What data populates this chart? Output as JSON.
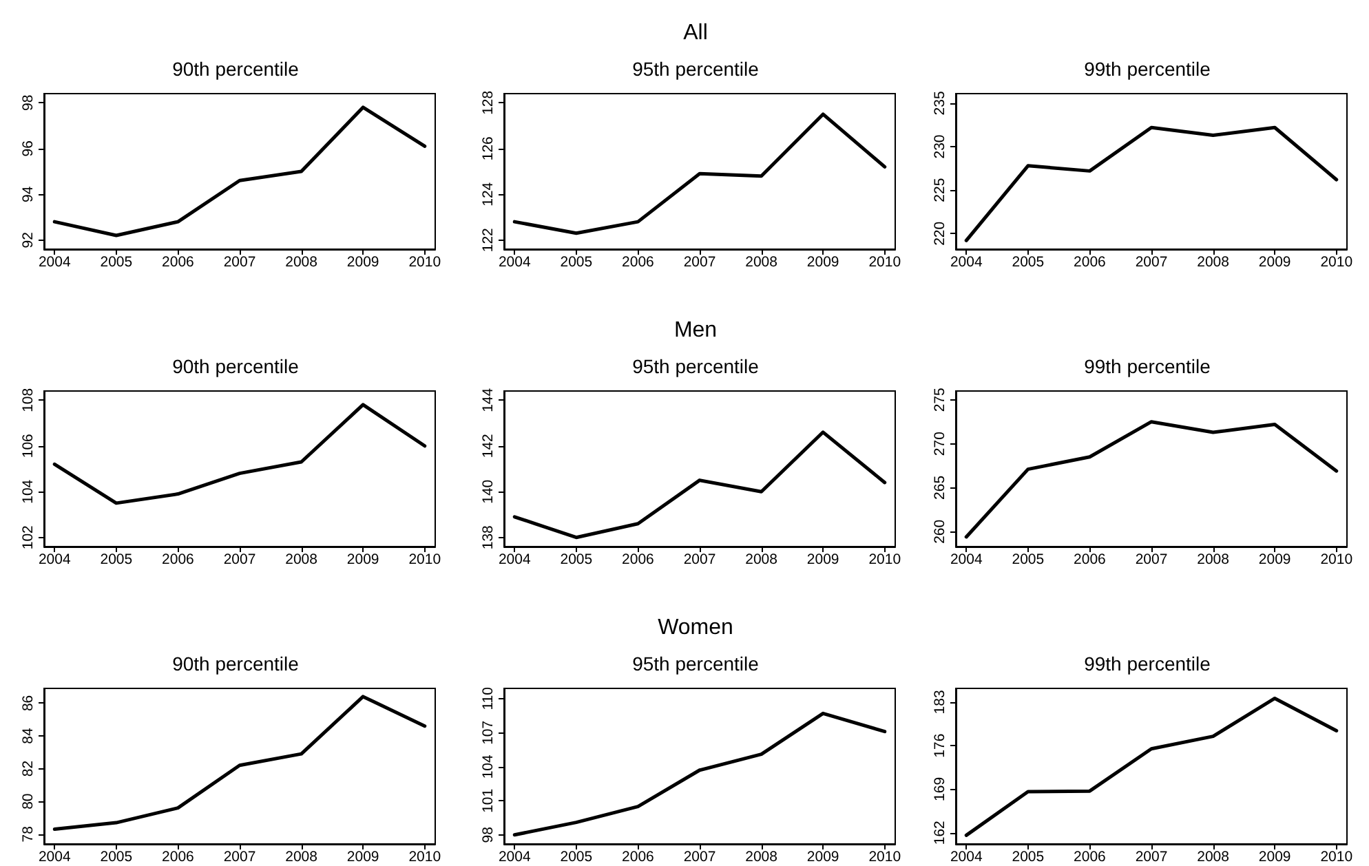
{
  "chart_data": [
    {
      "type": "line",
      "title": "90th percentile",
      "x": [
        2004,
        2005,
        2006,
        2007,
        2008,
        2009,
        2010
      ],
      "xlim": [
        2003.83,
        2010.17
      ],
      "xticks": [
        2004,
        2005,
        2006,
        2007,
        2008,
        2009,
        2010
      ],
      "ylim": [
        91.6,
        98.4
      ],
      "yticks": [
        92,
        94,
        96,
        98
      ],
      "grid": false,
      "marker": "none",
      "line_style": "solid",
      "series": [
        {
          "color": "#000000",
          "values": [
            92.8,
            92.2,
            92.8,
            94.6,
            95.0,
            97.8,
            96.1
          ]
        }
      ]
    },
    {
      "type": "line",
      "title": "95th percentile",
      "subtitle": "All",
      "x": [
        2004,
        2005,
        2006,
        2007,
        2008,
        2009,
        2010
      ],
      "xlim": [
        2003.83,
        2010.17
      ],
      "xticks": [
        2004,
        2005,
        2006,
        2007,
        2008,
        2009,
        2010
      ],
      "ylim": [
        121.6,
        128.4
      ],
      "yticks": [
        122,
        124,
        126,
        128
      ],
      "grid": false,
      "marker": "none",
      "line_style": "solid",
      "series": [
        {
          "color": "#000000",
          "values": [
            122.8,
            122.3,
            122.8,
            124.9,
            124.8,
            127.5,
            125.2
          ]
        }
      ]
    },
    {
      "type": "line",
      "title": "99th percentile",
      "x": [
        2004,
        2005,
        2006,
        2007,
        2008,
        2009,
        2010
      ],
      "xlim": [
        2003.83,
        2010.17
      ],
      "xticks": [
        2004,
        2005,
        2006,
        2007,
        2008,
        2009,
        2010
      ],
      "ylim": [
        218.2,
        236.1
      ],
      "yticks": [
        220,
        225,
        230,
        235
      ],
      "grid": false,
      "marker": "none",
      "line_style": "solid",
      "series": [
        {
          "color": "#000000",
          "values": [
            219.2,
            227.8,
            227.2,
            232.2,
            231.3,
            232.2,
            226.2
          ]
        }
      ]
    },
    {
      "type": "line",
      "title": "90th percentile",
      "x": [
        2004,
        2005,
        2006,
        2007,
        2008,
        2009,
        2010
      ],
      "xlim": [
        2003.83,
        2010.17
      ],
      "xticks": [
        2004,
        2005,
        2006,
        2007,
        2008,
        2009,
        2010
      ],
      "ylim": [
        101.6,
        108.4
      ],
      "yticks": [
        102,
        104,
        106,
        108
      ],
      "grid": false,
      "marker": "none",
      "line_style": "solid",
      "series": [
        {
          "color": "#000000",
          "values": [
            105.2,
            103.5,
            103.9,
            104.8,
            105.3,
            107.8,
            106.0
          ]
        }
      ]
    },
    {
      "type": "line",
      "title": "95th percentile",
      "subtitle": "Men",
      "x": [
        2004,
        2005,
        2006,
        2007,
        2008,
        2009,
        2010
      ],
      "xlim": [
        2003.83,
        2010.17
      ],
      "xticks": [
        2004,
        2005,
        2006,
        2007,
        2008,
        2009,
        2010
      ],
      "ylim": [
        137.6,
        144.4
      ],
      "yticks": [
        138,
        140,
        142,
        144
      ],
      "grid": false,
      "marker": "none",
      "line_style": "solid",
      "series": [
        {
          "color": "#000000",
          "values": [
            138.9,
            138.0,
            138.6,
            140.5,
            140.0,
            142.6,
            140.4
          ]
        }
      ]
    },
    {
      "type": "line",
      "title": "99th percentile",
      "x": [
        2004,
        2005,
        2006,
        2007,
        2008,
        2009,
        2010
      ],
      "xlim": [
        2003.83,
        2010.17
      ],
      "xticks": [
        2004,
        2005,
        2006,
        2007,
        2008,
        2009,
        2010
      ],
      "ylim": [
        258.3,
        276.0
      ],
      "yticks": [
        260,
        265,
        270,
        275
      ],
      "grid": false,
      "marker": "none",
      "line_style": "solid",
      "series": [
        {
          "color": "#000000",
          "values": [
            259.4,
            267.1,
            268.5,
            272.5,
            271.3,
            272.2,
            266.9
          ]
        }
      ]
    },
    {
      "type": "line",
      "title": "90th percentile",
      "x": [
        2004,
        2005,
        2006,
        2007,
        2008,
        2009,
        2010
      ],
      "xlim": [
        2003.83,
        2010.17
      ],
      "xticks": [
        2004,
        2005,
        2006,
        2007,
        2008,
        2009,
        2010
      ],
      "ylim": [
        77.4,
        86.9
      ],
      "yticks": [
        78,
        80,
        82,
        84,
        86
      ],
      "grid": false,
      "marker": "none",
      "line_style": "solid",
      "series": [
        {
          "color": "#000000",
          "values": [
            78.3,
            78.7,
            79.6,
            82.2,
            82.9,
            86.4,
            84.6
          ]
        }
      ]
    },
    {
      "type": "line",
      "title": "95th percentile",
      "subtitle": "Women",
      "x": [
        2004,
        2005,
        2006,
        2007,
        2008,
        2009,
        2010
      ],
      "xlim": [
        2003.83,
        2010.17
      ],
      "xticks": [
        2004,
        2005,
        2006,
        2007,
        2008,
        2009,
        2010
      ],
      "ylim": [
        97.2,
        110.9
      ],
      "yticks": [
        98,
        101,
        104,
        107,
        110
      ],
      "grid": false,
      "marker": "none",
      "line_style": "solid",
      "series": [
        {
          "color": "#000000",
          "values": [
            98.0,
            99.1,
            100.5,
            103.7,
            105.1,
            108.7,
            107.1
          ]
        }
      ]
    },
    {
      "type": "line",
      "title": "99th percentile",
      "x": [
        2004,
        2005,
        2006,
        2007,
        2008,
        2009,
        2010
      ],
      "xlim": [
        2003.83,
        2010.17
      ],
      "xticks": [
        2004,
        2005,
        2006,
        2007,
        2008,
        2009,
        2010
      ],
      "ylim": [
        160.2,
        185.2
      ],
      "yticks": [
        162,
        169,
        176,
        183
      ],
      "grid": false,
      "marker": "none",
      "line_style": "solid",
      "series": [
        {
          "color": "#000000",
          "values": [
            161.6,
            168.6,
            168.7,
            175.5,
            177.5,
            183.6,
            178.4
          ]
        }
      ]
    }
  ]
}
